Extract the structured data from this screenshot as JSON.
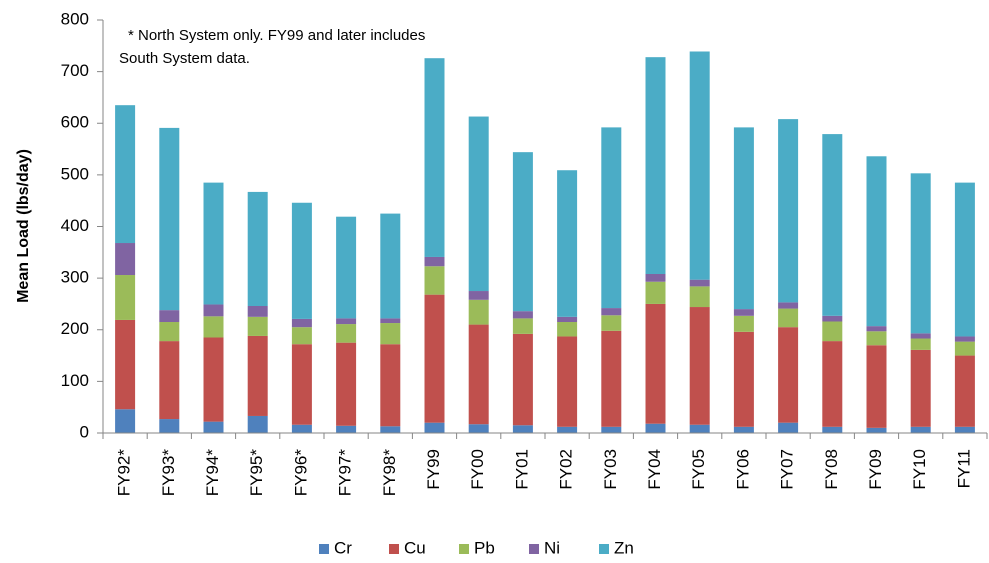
{
  "chart_data": {
    "type": "stacked_bar",
    "y_axis_label": "Mean Load (lbs/day)",
    "annotation": [
      "*  North System only.  FY99 and later includes",
      "South System data."
    ],
    "categories": [
      "FY92*",
      "FY93*",
      "FY94*",
      "FY95*",
      "FY96*",
      "FY97*",
      "FY98*",
      "FY99",
      "FY00",
      "FY01",
      "FY02",
      "FY03",
      "FY04",
      "FY05",
      "FY06",
      "FY07",
      "FY08",
      "FY09",
      "FY10",
      "FY11"
    ],
    "series": [
      {
        "name": "Cr",
        "color": "#4f81bd",
        "values": [
          46,
          27,
          22,
          33,
          16,
          14,
          13,
          20,
          17,
          15,
          12,
          12,
          18,
          16,
          12,
          20,
          12,
          10,
          12,
          12
        ]
      },
      {
        "name": "Cu",
        "color": "#c0504d",
        "values": [
          173,
          151,
          163,
          155,
          156,
          161,
          159,
          248,
          193,
          177,
          175,
          186,
          232,
          228,
          184,
          185,
          166,
          160,
          149,
          138
        ]
      },
      {
        "name": "Pb",
        "color": "#9bbb59",
        "values": [
          87,
          37,
          41,
          37,
          33,
          36,
          41,
          55,
          48,
          30,
          28,
          30,
          43,
          40,
          31,
          36,
          38,
          27,
          22,
          27
        ]
      },
      {
        "name": "Ni",
        "color": "#8064a2",
        "values": [
          62,
          23,
          23,
          21,
          16,
          11,
          9,
          18,
          17,
          14,
          10,
          14,
          15,
          13,
          13,
          12,
          11,
          10,
          10,
          10
        ]
      },
      {
        "name": "Zn",
        "color": "#4bacc6",
        "values": [
          267,
          353,
          236,
          221,
          225,
          197,
          203,
          385,
          338,
          308,
          284,
          350,
          420,
          442,
          352,
          355,
          352,
          329,
          310,
          298
        ]
      }
    ],
    "ylim": [
      0,
      800
    ],
    "yticks": [
      0,
      100,
      200,
      300,
      400,
      500,
      600,
      700,
      800
    ],
    "grid": false,
    "legend": "bottom"
  }
}
